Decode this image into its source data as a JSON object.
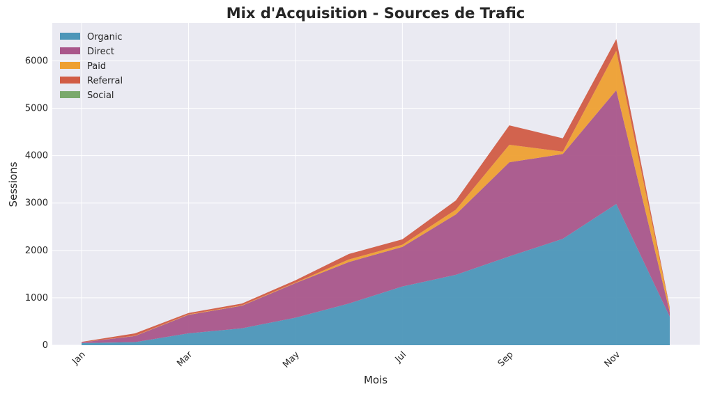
{
  "chart_data": {
    "type": "area",
    "stacked": true,
    "title": "Mix d'Acquisition - Sources de Trafic",
    "xlabel": "Mois",
    "ylabel": "Sessions",
    "categories": [
      "Jan",
      "Feb",
      "Mar",
      "Apr",
      "May",
      "Jun",
      "Jul",
      "Aug",
      "Sep",
      "Oct",
      "Nov",
      "Dec"
    ],
    "x_tick_labels": [
      "Jan",
      "Mar",
      "May",
      "Jul",
      "Sep",
      "Nov"
    ],
    "y_ticks": [
      0,
      1000,
      2000,
      3000,
      4000,
      5000,
      6000
    ],
    "ylim": [
      0,
      6800
    ],
    "grid": true,
    "legend_position": "top-left",
    "background": "#eaeaf2",
    "series": [
      {
        "name": "Organic",
        "color": "#4c96b8",
        "values": [
          45,
          65,
          250,
          357,
          580,
          880,
          1240,
          1485,
          1875,
          2245,
          2980,
          600
        ]
      },
      {
        "name": "Direct",
        "color": "#a9568a",
        "values": [
          15,
          130,
          390,
          476,
          730,
          875,
          835,
          1275,
          1985,
          1790,
          2400,
          100
        ]
      },
      {
        "name": "Paid",
        "color": "#eea032",
        "values": [
          0,
          5,
          10,
          10,
          10,
          55,
          45,
          100,
          370,
          50,
          835,
          80
        ]
      },
      {
        "name": "Referral",
        "color": "#d15c44",
        "values": [
          10,
          50,
          30,
          37,
          50,
          115,
          115,
          195,
          410,
          280,
          245,
          20
        ]
      },
      {
        "name": "Social",
        "color": "#7aa96c",
        "values": [
          0,
          0,
          0,
          0,
          0,
          0,
          0,
          0,
          0,
          0,
          0,
          0
        ]
      }
    ]
  }
}
